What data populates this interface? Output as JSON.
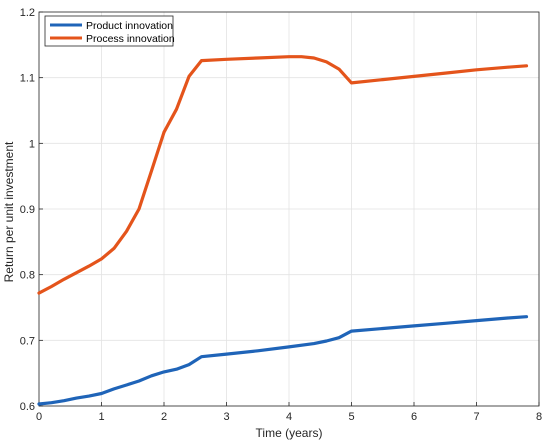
{
  "chart_data": {
    "type": "line",
    "xlabel": "Time (years)",
    "ylabel": "Return per unit investment",
    "xlim": [
      0,
      8
    ],
    "ylim": [
      0.6,
      1.2
    ],
    "xticks": [
      "0",
      "1",
      "2",
      "3",
      "4",
      "5",
      "6",
      "7",
      "8"
    ],
    "yticks": [
      "0.6",
      "0.7",
      "0.8",
      "0.9",
      "1",
      "1.1",
      "1.2"
    ],
    "grid": true,
    "legend_position": "top-left",
    "series": [
      {
        "name": "Product innovation",
        "color": "#1f64b8",
        "x": [
          0,
          0.2,
          0.4,
          0.6,
          0.8,
          1.0,
          1.2,
          1.4,
          1.6,
          1.8,
          2.0,
          2.2,
          2.4,
          2.6,
          3.0,
          3.5,
          4.0,
          4.4,
          4.6,
          4.8,
          5.0,
          5.5,
          6.0,
          6.5,
          7.0,
          7.5,
          7.8
        ],
        "y": [
          0.603,
          0.605,
          0.608,
          0.612,
          0.615,
          0.619,
          0.626,
          0.632,
          0.638,
          0.646,
          0.652,
          0.656,
          0.663,
          0.675,
          0.679,
          0.684,
          0.69,
          0.695,
          0.699,
          0.704,
          0.714,
          0.718,
          0.722,
          0.726,
          0.73,
          0.734,
          0.736
        ]
      },
      {
        "name": "Process innovation",
        "color": "#e4541b",
        "x": [
          0,
          0.2,
          0.4,
          0.6,
          0.8,
          1.0,
          1.2,
          1.4,
          1.6,
          1.8,
          2.0,
          2.2,
          2.4,
          2.6,
          3.0,
          3.5,
          4.0,
          4.2,
          4.4,
          4.6,
          4.8,
          5.0,
          5.5,
          6.0,
          6.5,
          7.0,
          7.5,
          7.8
        ],
        "y": [
          0.772,
          0.782,
          0.793,
          0.803,
          0.813,
          0.824,
          0.84,
          0.866,
          0.9,
          0.958,
          1.017,
          1.052,
          1.102,
          1.126,
          1.128,
          1.13,
          1.132,
          1.132,
          1.13,
          1.124,
          1.113,
          1.092,
          1.097,
          1.102,
          1.107,
          1.112,
          1.116,
          1.118
        ]
      }
    ]
  }
}
